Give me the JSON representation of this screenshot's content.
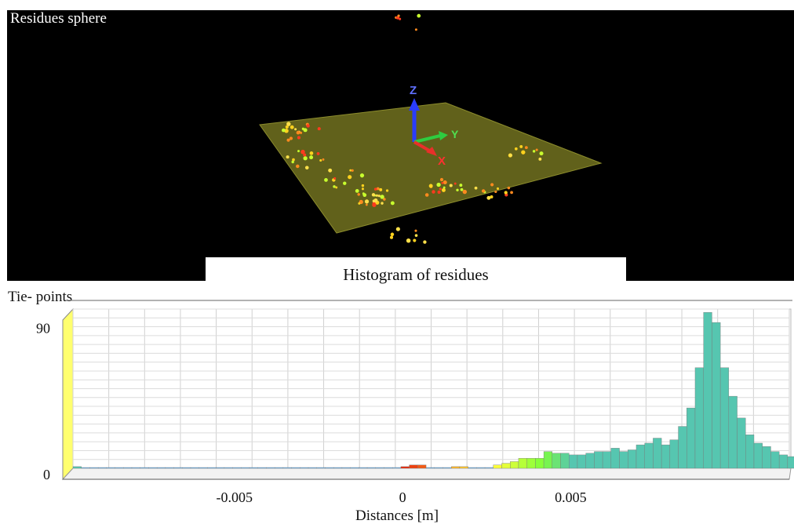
{
  "scene": {
    "title": "Residues sphere",
    "axis_z": "Z",
    "axis_y": "Y",
    "axis_x": "X",
    "plane_color": "#6b6b1e",
    "axis_colors": {
      "z": "#2a3cff",
      "y": "#2ecc40",
      "x": "#e8302a"
    }
  },
  "chart_data": {
    "type": "bar",
    "title": "Histogram of residues",
    "ylabel": "Tie- points",
    "xlabel": "Distances [m]",
    "xlim": [
      -0.0098,
      0.0115
    ],
    "ylim": [
      0,
      95
    ],
    "yticks": [
      0,
      90
    ],
    "ytick_labels": [
      "0",
      "90"
    ],
    "xticks": [
      -0.005,
      0,
      0.005
    ],
    "xtick_labels": [
      "-0.005",
      "0",
      "0.005"
    ],
    "bin_width": 0.00025,
    "bin_start": -0.0098,
    "grid": true,
    "color_scale": [
      "#3aa0ff",
      "#7fff3a",
      "#ffff3a",
      "#ffae2a",
      "#e8200a"
    ],
    "values": [
      1,
      0,
      0,
      0,
      0,
      0,
      0,
      0,
      0,
      0,
      0,
      0,
      0,
      0,
      0,
      0,
      0,
      0,
      0,
      0,
      0,
      0,
      0,
      0,
      0,
      0,
      0,
      0,
      0,
      0,
      0,
      0,
      0,
      0,
      0,
      0,
      0,
      0,
      0,
      1,
      2,
      2,
      0,
      0,
      0,
      1,
      1,
      0,
      0,
      0,
      2,
      3,
      4,
      6,
      6,
      6,
      10,
      9,
      9,
      8,
      8,
      9,
      10,
      10,
      12,
      10,
      11,
      14,
      15,
      18,
      14,
      17,
      25,
      36,
      60,
      93,
      87,
      60,
      43,
      30,
      20,
      15,
      13,
      10,
      8,
      7,
      6,
      5,
      4,
      4,
      4,
      10,
      4,
      4,
      5,
      3,
      4,
      3,
      3,
      2,
      1,
      1,
      1,
      0,
      0,
      1,
      1,
      0,
      0,
      0,
      0,
      0,
      0,
      0,
      0,
      0,
      0,
      1,
      0,
      0,
      0,
      0,
      0,
      0,
      0,
      0,
      0,
      0,
      0,
      1,
      0,
      0,
      0,
      0,
      0,
      0,
      0,
      0,
      0,
      0,
      0,
      0,
      1,
      0,
      0,
      0,
      0,
      0,
      0,
      0,
      1,
      0,
      0,
      0,
      0,
      0,
      0,
      0,
      0,
      0,
      2
    ]
  }
}
